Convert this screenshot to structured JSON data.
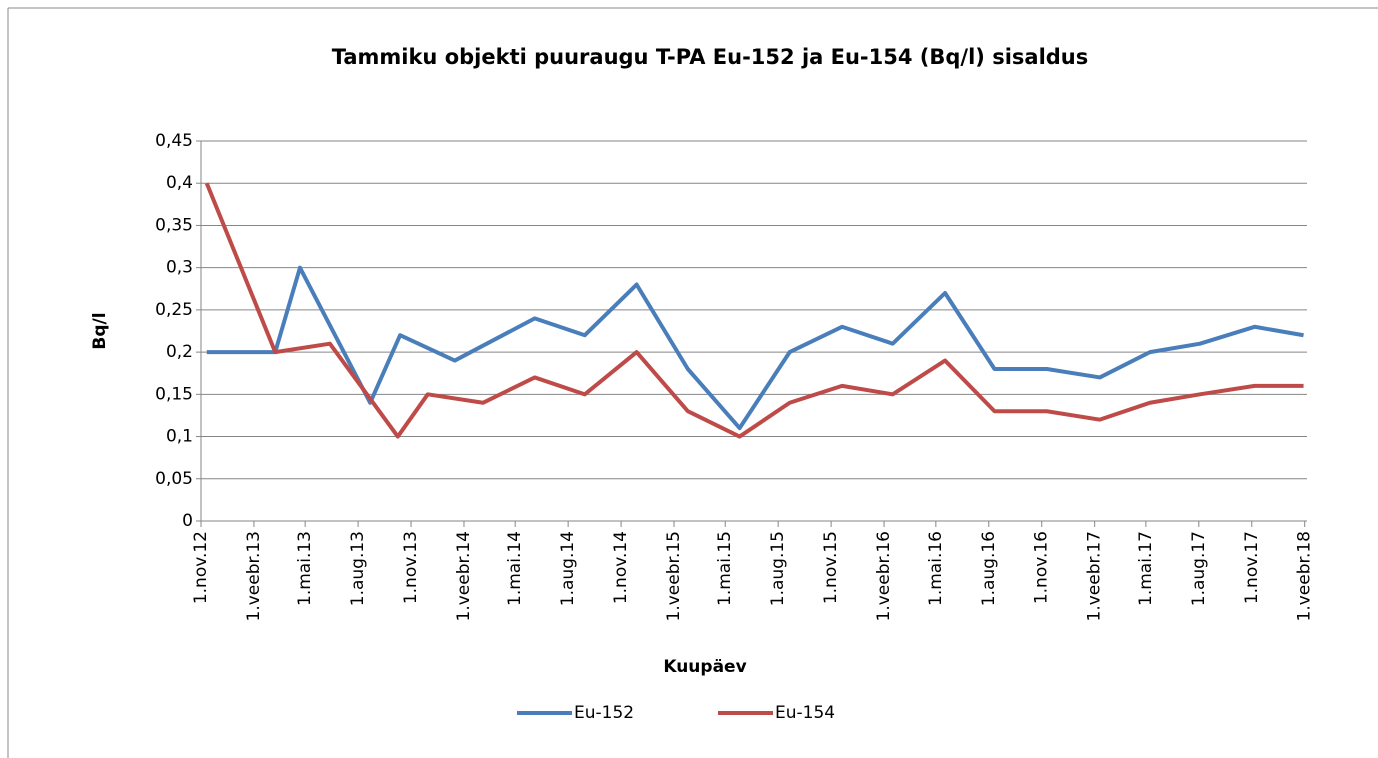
{
  "chart_data": {
    "type": "line",
    "title": "Tammiku objekti puuraugu T-PA Eu-152 ja Eu-154 (Bq/l) sisaldus",
    "xlabel": "Kuupäev",
    "ylabel": "Bq/l",
    "xlim": [
      "2012-11-01",
      "2018-02-05"
    ],
    "xticks": [
      {
        "value": "2012-11-01",
        "label": "1.nov.12"
      },
      {
        "value": "2013-02-01",
        "label": "1.veebr.13"
      },
      {
        "value": "2013-05-01",
        "label": "1.mai.13"
      },
      {
        "value": "2013-08-01",
        "label": "1.aug.13"
      },
      {
        "value": "2013-11-01",
        "label": "1.nov.13"
      },
      {
        "value": "2014-02-01",
        "label": "1.veebr.14"
      },
      {
        "value": "2014-05-01",
        "label": "1.mai.14"
      },
      {
        "value": "2014-08-01",
        "label": "1.aug.14"
      },
      {
        "value": "2014-11-01",
        "label": "1.nov.14"
      },
      {
        "value": "2015-02-01",
        "label": "1.veebr.15"
      },
      {
        "value": "2015-05-01",
        "label": "1.mai.15"
      },
      {
        "value": "2015-08-01",
        "label": "1.aug.15"
      },
      {
        "value": "2015-11-01",
        "label": "1.nov.15"
      },
      {
        "value": "2016-02-01",
        "label": "1.veebr.16"
      },
      {
        "value": "2016-05-01",
        "label": "1.mai.16"
      },
      {
        "value": "2016-08-01",
        "label": "1.aug.16"
      },
      {
        "value": "2016-11-01",
        "label": "1.nov.16"
      },
      {
        "value": "2017-02-01",
        "label": "1.veebr.17"
      },
      {
        "value": "2017-05-01",
        "label": "1.mai.17"
      },
      {
        "value": "2017-08-01",
        "label": "1.aug.17"
      },
      {
        "value": "2017-11-01",
        "label": "1.nov.17"
      },
      {
        "value": "2018-02-01",
        "label": "1.veebr.18"
      }
    ],
    "ylim": [
      0,
      0.45
    ],
    "yticks": [
      0,
      {
        "value": 0.05,
        "label": "0,05"
      },
      {
        "value": 0.1,
        "label": "0,1"
      },
      {
        "value": 0.15,
        "label": "0,15"
      },
      {
        "value": 0.2,
        "label": "0,2"
      },
      {
        "value": 0.25,
        "label": "0,25"
      },
      {
        "value": 0.3,
        "label": "0,3"
      },
      {
        "value": 0.35,
        "label": "0,35"
      },
      {
        "value": 0.4,
        "label": "0,4"
      },
      {
        "value": 0.45,
        "label": "0,45"
      }
    ],
    "grid": true,
    "legend": "bottom",
    "series": [
      {
        "name": "Eu-152",
        "color": "#4a7ebb",
        "x": [
          "2012-11-11",
          "2013-03-10",
          "2013-04-22",
          "2013-08-22",
          "2013-10-13",
          "2014-01-16",
          "2014-06-04",
          "2014-08-30",
          "2014-11-28",
          "2015-02-25",
          "2015-05-26",
          "2015-08-21",
          "2015-11-20",
          "2016-02-16",
          "2016-05-17",
          "2016-08-11",
          "2016-11-10",
          "2017-02-10",
          "2017-05-08",
          "2017-08-03",
          "2017-11-06",
          "2018-01-30"
        ],
        "values": [
          0.2,
          0.2,
          0.3,
          0.14,
          0.22,
          0.19,
          0.24,
          0.22,
          0.28,
          0.18,
          0.11,
          0.2,
          0.23,
          0.21,
          0.27,
          0.18,
          0.18,
          0.17,
          0.2,
          0.21,
          0.23,
          0.22
        ]
      },
      {
        "name": "Eu-154",
        "color": "#be4b48",
        "x": [
          "2012-11-11",
          "2013-03-10",
          "2013-06-13",
          "2013-10-09",
          "2013-11-30",
          "2014-03-06",
          "2014-06-04",
          "2014-08-30",
          "2014-11-28",
          "2015-02-25",
          "2015-05-26",
          "2015-08-21",
          "2015-11-20",
          "2016-02-16",
          "2016-05-17",
          "2016-08-11",
          "2016-11-10",
          "2017-02-10",
          "2017-05-08",
          "2017-08-03",
          "2017-11-06",
          "2018-01-30"
        ],
        "values": [
          0.4,
          0.2,
          0.21,
          0.1,
          0.15,
          0.14,
          0.17,
          0.15,
          0.2,
          0.13,
          0.1,
          0.14,
          0.16,
          0.15,
          0.19,
          0.13,
          0.13,
          0.12,
          0.14,
          0.15,
          0.16,
          0.16
        ]
      }
    ]
  }
}
